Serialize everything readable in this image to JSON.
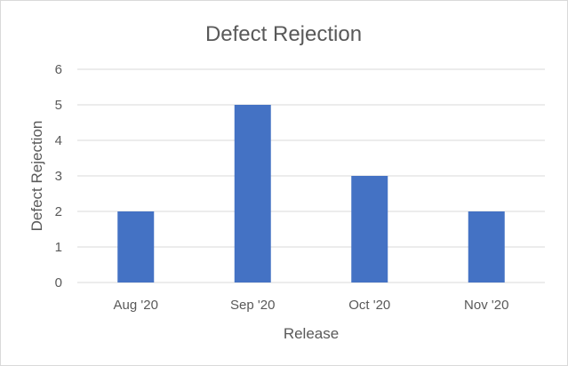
{
  "chart_data": {
    "type": "bar",
    "title": "Defect Rejection",
    "xlabel": "Release",
    "ylabel": "Defect Rejection",
    "categories": [
      "Aug '20",
      "Sep '20",
      "Oct '20",
      "Nov '20"
    ],
    "values": [
      2,
      5,
      3,
      2
    ],
    "ylim": [
      0,
      6
    ],
    "yticks": [
      "0",
      "1",
      "2",
      "3",
      "4",
      "5",
      "6"
    ],
    "grid": true,
    "legend": "none",
    "bar_color": "#4472c4",
    "grid_color": "#d9d9d9"
  }
}
